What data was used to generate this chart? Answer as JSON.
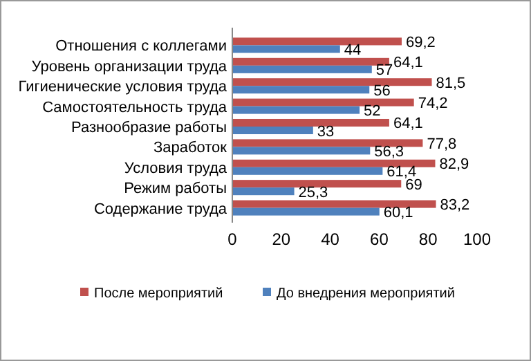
{
  "chart_data": {
    "type": "bar",
    "orientation": "horizontal",
    "categories": [
      "Отношения с коллегами",
      "Уровень организации труда",
      "Гигиенические условия труда",
      "Самостоятельность труда",
      "Разнообразие работы",
      "Заработок",
      "Условия труда",
      "Режим работы",
      "Содержание труда"
    ],
    "series": [
      {
        "name": "После мероприятий",
        "color": "#c0504d",
        "values": [
          69.2,
          64.1,
          81.5,
          74.2,
          64.1,
          77.8,
          82.9,
          69,
          83.2
        ],
        "value_labels": [
          "69,2",
          "64,1",
          "81,5",
          "74,2",
          "64,1",
          "77,8",
          "82,9",
          "69",
          "83,2"
        ]
      },
      {
        "name": "До внедрения мероприятий",
        "color": "#4f81bd",
        "values": [
          44,
          57,
          56,
          52,
          33,
          56.3,
          61.4,
          25.3,
          60.1
        ],
        "value_labels": [
          "44",
          "57",
          "56",
          "52",
          "33",
          "56,3",
          "61,4",
          "25,3",
          "60,1"
        ]
      }
    ],
    "xlim": [
      0,
      100
    ],
    "xticks": [
      0,
      20,
      40,
      60,
      80,
      100
    ],
    "legend": "bottom",
    "grid": false
  }
}
